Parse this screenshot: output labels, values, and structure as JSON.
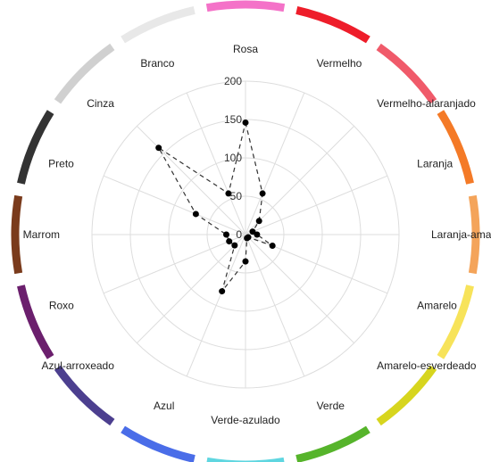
{
  "chart_data": {
    "type": "radar",
    "categories": [
      "Rosa",
      "Vermelho",
      "Vermelho-alaranjado",
      "Laranja",
      "Laranja-amarelado",
      "Amarelo",
      "Amarelo-esverdeado",
      "Verde",
      "Verde-azulado",
      "Azul",
      "Azul-arroxeado",
      "Roxo",
      "Marrom",
      "Preto",
      "Cinza",
      "Branco"
    ],
    "category_colors": [
      "#f472c8",
      "#ee1d2a",
      "#f05a6a",
      "#f47a27",
      "#f4a45a",
      "#f7e35a",
      "#d7d51e",
      "#56b42b",
      "#5fd6e0",
      "#4a6de8",
      "#4c3f8f",
      "#6b1f6d",
      "#7a3b1c",
      "#333333",
      "#d0d0d0",
      "#e8e8e8"
    ],
    "series": [
      {
        "values": [
          146,
          58,
          25,
          10,
          15,
          38,
          5,
          5,
          35,
          80,
          20,
          23,
          25,
          70,
          160,
          58
        ]
      }
    ],
    "rlim": [
      0,
      200
    ],
    "r_ticks": [
      0,
      50,
      100,
      150,
      200
    ],
    "r_tick_labels": [
      "0",
      "50",
      "100",
      "150",
      "200"
    ],
    "grid": true,
    "line_style": "dashed",
    "line_color": "#333333",
    "marker_color": "#000000"
  }
}
